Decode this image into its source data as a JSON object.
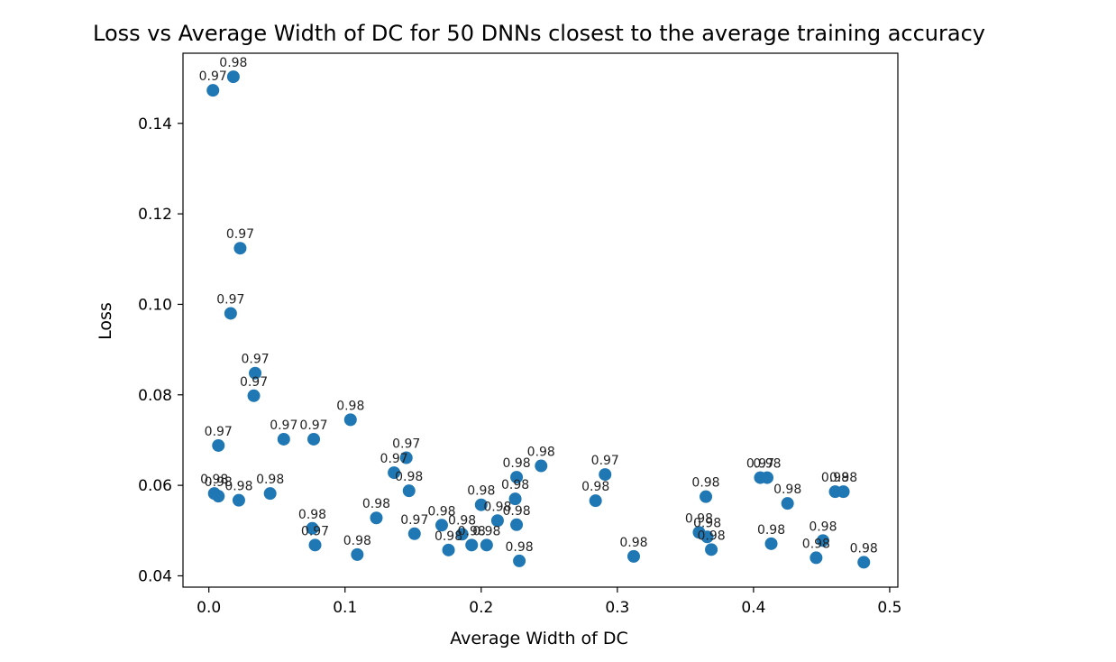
{
  "chart_data": {
    "type": "scatter",
    "title": "Loss vs Average Width of DC for 50 DNNs closest to the average training accuracy",
    "xlabel": "Average Width of DC",
    "ylabel": "Loss",
    "xlim": [
      -0.019,
      0.506
    ],
    "ylim": [
      0.0375,
      0.1555
    ],
    "xticks": [
      0.0,
      0.1,
      0.2,
      0.3,
      0.4,
      0.5
    ],
    "xtick_labels": [
      "0.0",
      "0.1",
      "0.2",
      "0.3",
      "0.4",
      "0.5"
    ],
    "yticks": [
      0.04,
      0.06,
      0.08,
      0.1,
      0.12,
      0.14
    ],
    "ytick_labels": [
      "0.04",
      "0.06",
      "0.08",
      "0.10",
      "0.12",
      "0.14"
    ],
    "marker_color": "#1f77b4",
    "points": [
      {
        "x": 0.003,
        "y": 0.1473,
        "label": "0.97"
      },
      {
        "x": 0.018,
        "y": 0.1503,
        "label": "0.98"
      },
      {
        "x": 0.023,
        "y": 0.1124,
        "label": "0.97"
      },
      {
        "x": 0.016,
        "y": 0.098,
        "label": "0.97"
      },
      {
        "x": 0.034,
        "y": 0.0848,
        "label": "0.97"
      },
      {
        "x": 0.033,
        "y": 0.0798,
        "label": "0.97"
      },
      {
        "x": 0.007,
        "y": 0.0688,
        "label": "0.97"
      },
      {
        "x": 0.055,
        "y": 0.0702,
        "label": "0.97"
      },
      {
        "x": 0.077,
        "y": 0.0702,
        "label": "0.97"
      },
      {
        "x": 0.104,
        "y": 0.0745,
        "label": "0.98"
      },
      {
        "x": 0.004,
        "y": 0.0582,
        "label": "0.98"
      },
      {
        "x": 0.007,
        "y": 0.0576,
        "label": "0.98"
      },
      {
        "x": 0.022,
        "y": 0.0567,
        "label": "0.98"
      },
      {
        "x": 0.045,
        "y": 0.0582,
        "label": "0.98"
      },
      {
        "x": 0.076,
        "y": 0.0505,
        "label": "0.98"
      },
      {
        "x": 0.078,
        "y": 0.0468,
        "label": "0.97"
      },
      {
        "x": 0.109,
        "y": 0.0447,
        "label": "0.98"
      },
      {
        "x": 0.123,
        "y": 0.0528,
        "label": "0.98"
      },
      {
        "x": 0.136,
        "y": 0.0628,
        "label": "0.97"
      },
      {
        "x": 0.145,
        "y": 0.0661,
        "label": "0.97"
      },
      {
        "x": 0.147,
        "y": 0.0588,
        "label": "0.98"
      },
      {
        "x": 0.151,
        "y": 0.0493,
        "label": "0.97"
      },
      {
        "x": 0.171,
        "y": 0.0512,
        "label": "0.98"
      },
      {
        "x": 0.176,
        "y": 0.0457,
        "label": "0.98"
      },
      {
        "x": 0.186,
        "y": 0.0492,
        "label": "0.98"
      },
      {
        "x": 0.193,
        "y": 0.0468,
        "label": "0.98"
      },
      {
        "x": 0.2,
        "y": 0.0557,
        "label": "0.98"
      },
      {
        "x": 0.204,
        "y": 0.0468,
        "label": "0.98"
      },
      {
        "x": 0.212,
        "y": 0.0522,
        "label": "0.98"
      },
      {
        "x": 0.225,
        "y": 0.057,
        "label": "0.98"
      },
      {
        "x": 0.226,
        "y": 0.0618,
        "label": "0.98"
      },
      {
        "x": 0.226,
        "y": 0.0513,
        "label": "0.98"
      },
      {
        "x": 0.228,
        "y": 0.0433,
        "label": "0.98"
      },
      {
        "x": 0.244,
        "y": 0.0643,
        "label": "0.98"
      },
      {
        "x": 0.284,
        "y": 0.0566,
        "label": "0.98"
      },
      {
        "x": 0.291,
        "y": 0.0624,
        "label": "0.97"
      },
      {
        "x": 0.312,
        "y": 0.0443,
        "label": "0.98"
      },
      {
        "x": 0.36,
        "y": 0.0496,
        "label": "0.98"
      },
      {
        "x": 0.365,
        "y": 0.0575,
        "label": "0.98"
      },
      {
        "x": 0.366,
        "y": 0.0486,
        "label": "0.98"
      },
      {
        "x": 0.369,
        "y": 0.0458,
        "label": "0.98"
      },
      {
        "x": 0.405,
        "y": 0.0617,
        "label": "0.97"
      },
      {
        "x": 0.41,
        "y": 0.0617,
        "label": "0.98"
      },
      {
        "x": 0.413,
        "y": 0.0471,
        "label": "0.98"
      },
      {
        "x": 0.425,
        "y": 0.056,
        "label": "0.98"
      },
      {
        "x": 0.446,
        "y": 0.044,
        "label": "0.98"
      },
      {
        "x": 0.451,
        "y": 0.0478,
        "label": "0.98"
      },
      {
        "x": 0.46,
        "y": 0.0586,
        "label": "0.98"
      },
      {
        "x": 0.466,
        "y": 0.0586,
        "label": "0.98"
      },
      {
        "x": 0.481,
        "y": 0.043,
        "label": "0.98"
      }
    ]
  }
}
